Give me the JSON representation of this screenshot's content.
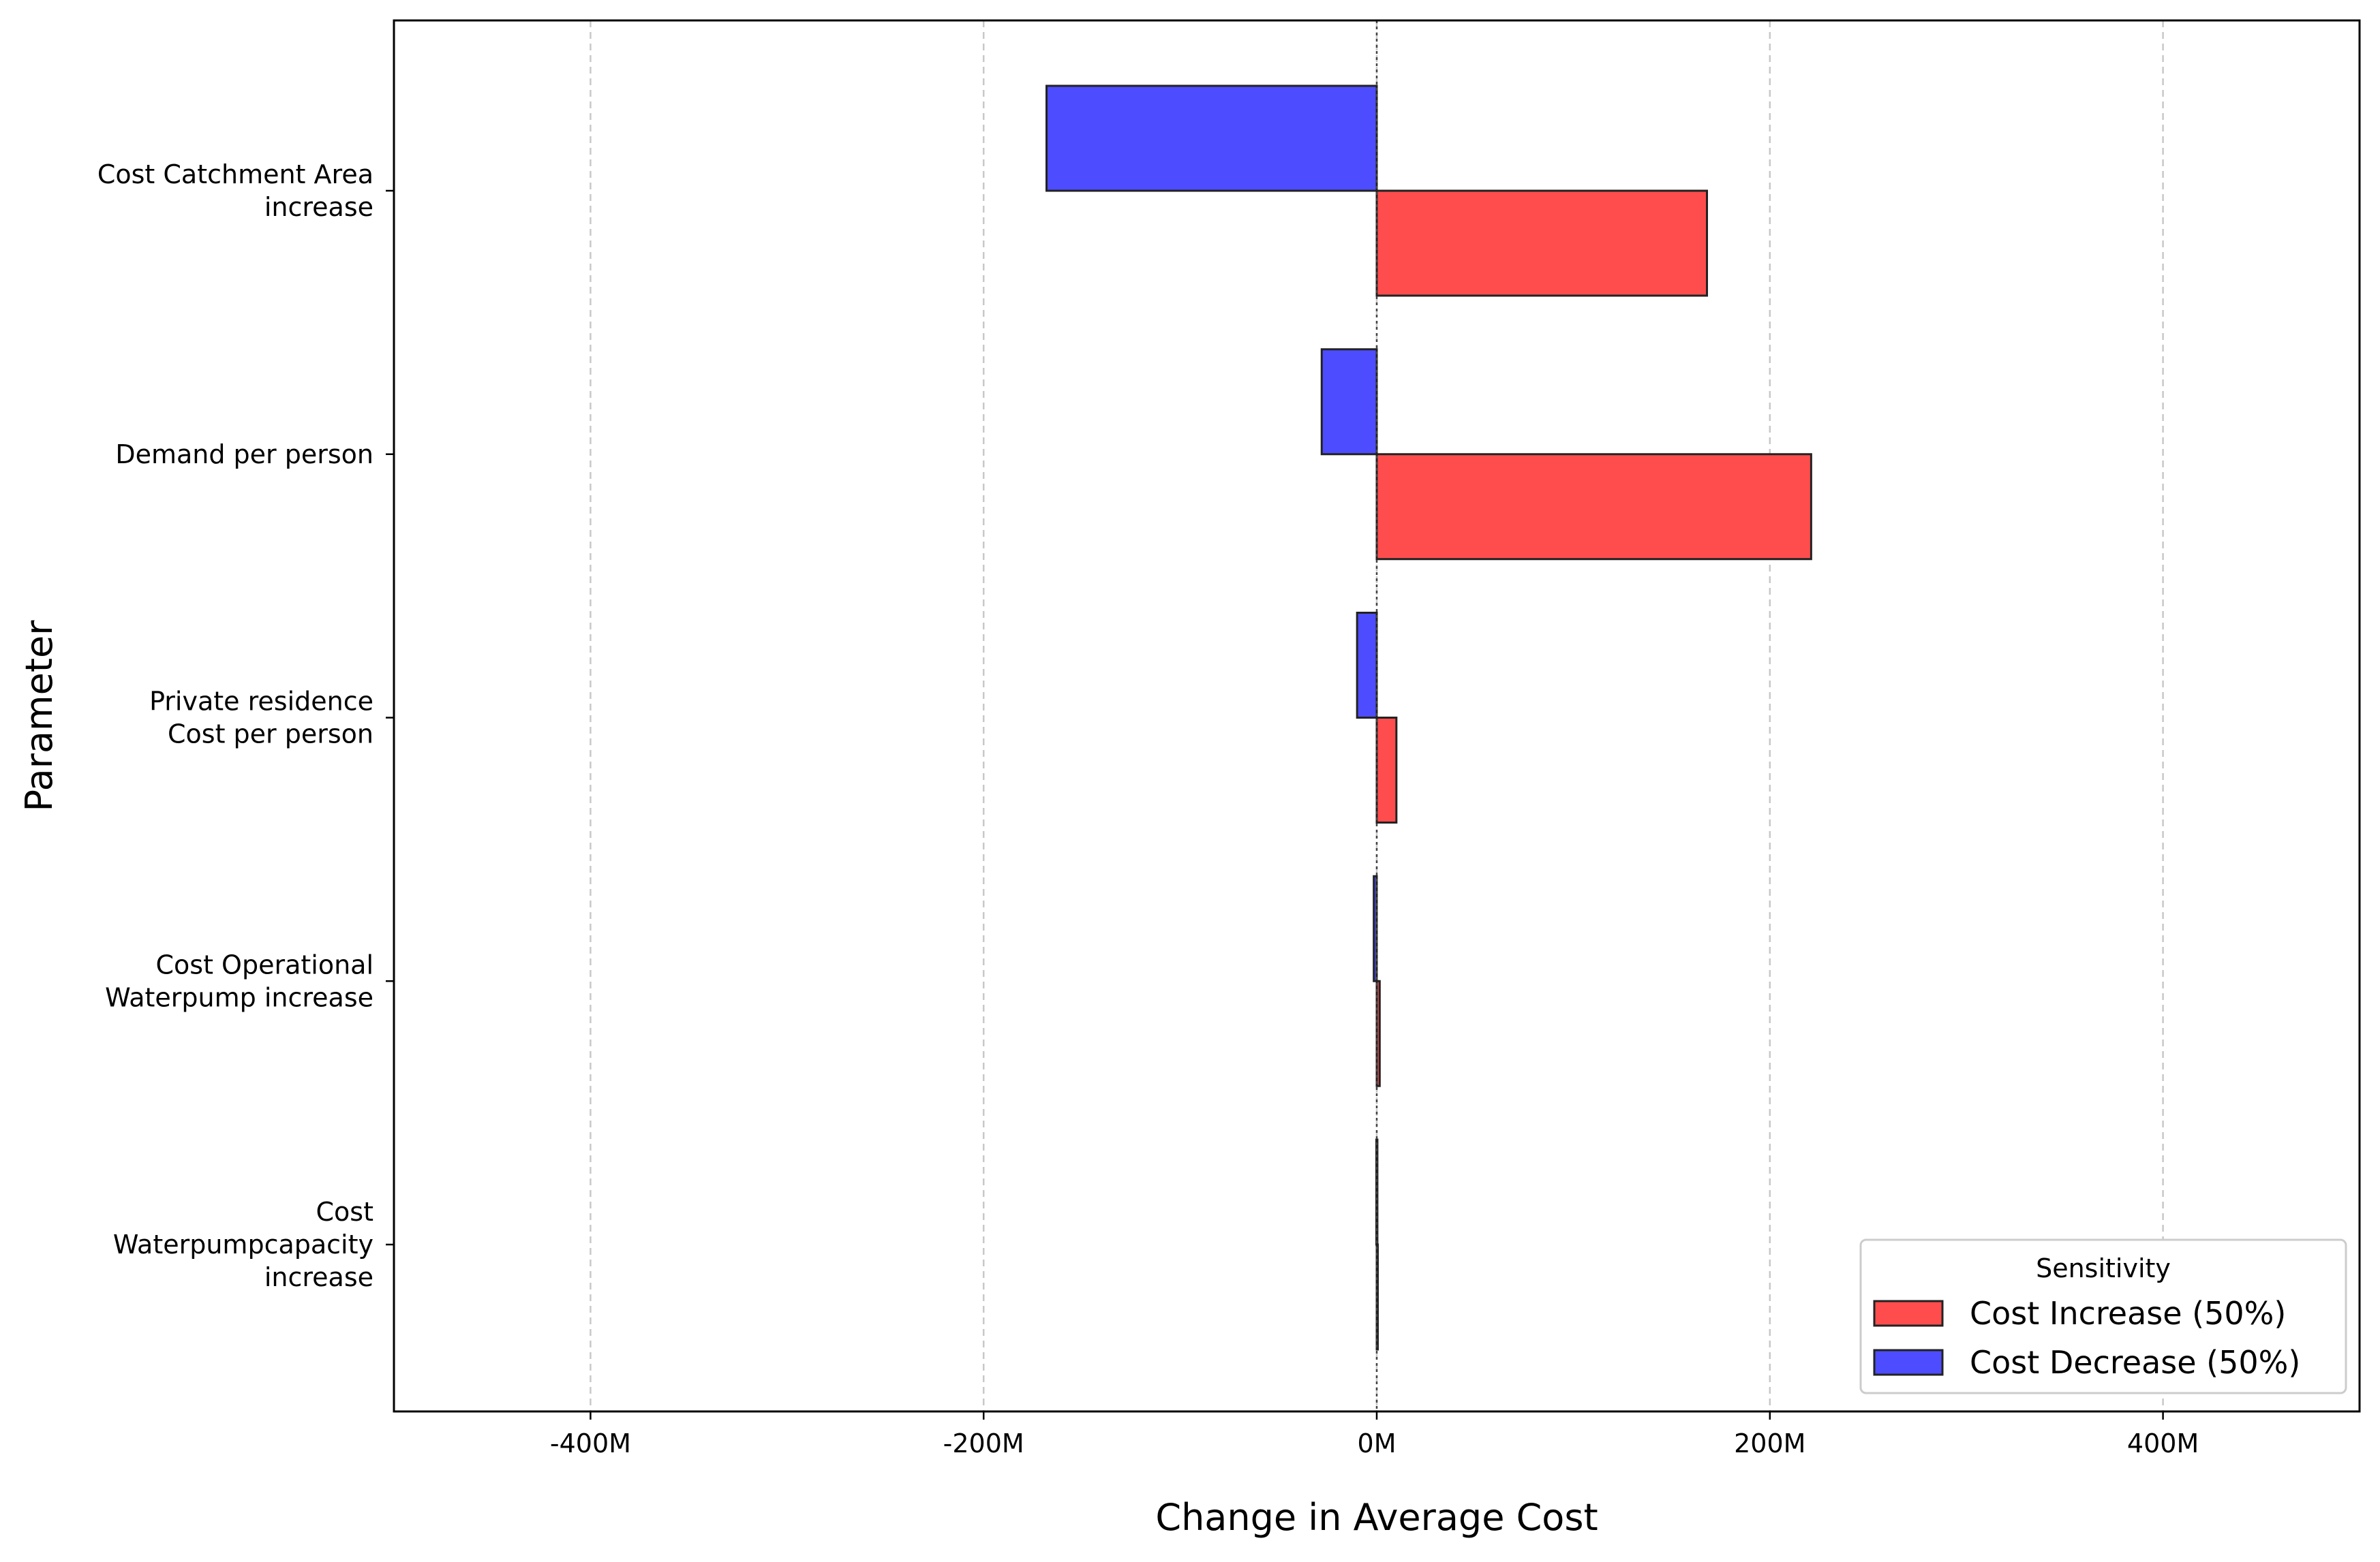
{
  "chart_data": {
    "type": "bar",
    "orientation": "horizontal",
    "title": "",
    "xlabel": "Change in Average Cost",
    "ylabel": "Parameter",
    "xlim": [
      -500,
      500
    ],
    "x_unit": "M",
    "xticks": [
      -400,
      -200,
      0,
      200,
      400
    ],
    "xtick_labels": [
      "-400M",
      "-200M",
      "0M",
      "200M",
      "400M"
    ],
    "grid": "x-dashed",
    "categories": [
      [
        "Cost Catchment Area",
        "increase"
      ],
      [
        "Demand per person"
      ],
      [
        "Private residence",
        "Cost per person"
      ],
      [
        "Cost Operational",
        "Waterpump increase"
      ],
      [
        "Cost",
        "Waterpumpcapacity",
        "increase"
      ]
    ],
    "series": [
      {
        "name": "Cost Increase (50%)",
        "color": "#ff4d4d",
        "values": [
          168,
          221,
          10,
          1.5,
          0.2
        ]
      },
      {
        "name": "Cost Decrease (50%)",
        "color": "#4d4dff",
        "values": [
          -168,
          -28,
          -10,
          -1.5,
          -0.2
        ]
      }
    ],
    "legend": {
      "title": "Sensitivity",
      "position": "lower-right"
    }
  }
}
